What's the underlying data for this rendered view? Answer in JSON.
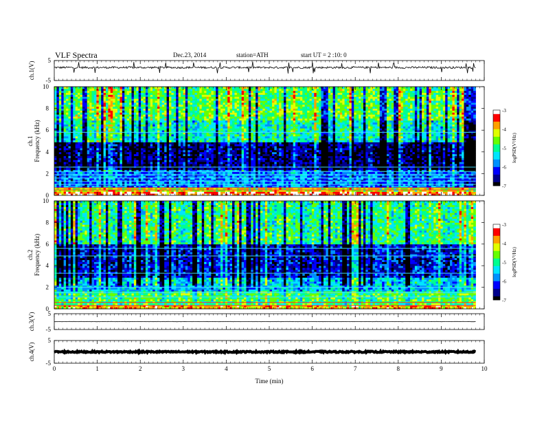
{
  "header": {
    "title": "VLF  Spectra",
    "date": "Dec.23, 2014",
    "station": "station=ATH",
    "start": "start  UT  =   2  :10: 0"
  },
  "chart_data": {
    "type": "heatmap",
    "x_axis": {
      "label": "Time  (min)",
      "range": [
        0,
        10
      ],
      "ticks": [
        "0",
        "1",
        "2",
        "3",
        "4",
        "5",
        "6",
        "7",
        "8",
        "9",
        "10"
      ],
      "data_end_min": 9.8
    },
    "panels": [
      {
        "id": "ch1-waveform",
        "type": "line",
        "ylabel": "ch.1(V)",
        "ylim": [
          -5,
          5
        ],
        "ytick_labels": [
          "5",
          "-5"
        ],
        "baseline_v": 1.5,
        "noise_amplitude_v": 1.0,
        "color": "#000000"
      },
      {
        "id": "ch1-spectrogram",
        "type": "heatmap",
        "ylabel_lines": [
          "ch.1",
          "Frequency  (kHz)"
        ],
        "ylim": [
          0,
          10
        ],
        "ytick_labels": [
          "10",
          "8",
          "6",
          "4",
          "2",
          "0"
        ],
        "colorbar": {
          "label": "logPSD(V²/Hz)",
          "range": [
            -7,
            -3
          ],
          "tick_labels": [
            "-3",
            "-4",
            "-5",
            "-6",
            "-7"
          ]
        },
        "mean_log_psd_by_band": [
          {
            "f_khz": [
              0.0,
              0.3
            ],
            "log_psd": -3.3
          },
          {
            "f_khz": [
              0.3,
              0.8
            ],
            "log_psd": -4.2
          },
          {
            "f_khz": [
              0.8,
              2.4
            ],
            "log_psd": -5.8
          },
          {
            "f_khz": [
              2.4,
              5.0
            ],
            "log_psd": -6.6
          },
          {
            "f_khz": [
              5.0,
              7.0
            ],
            "log_psd": -5.2
          },
          {
            "f_khz": [
              7.0,
              10.0
            ],
            "log_psd": -4.7
          }
        ],
        "horizontal_lines_khz": [
          0.5,
          0.7,
          1.0,
          1.3,
          1.6,
          1.9,
          2.2,
          2.6,
          5.8
        ]
      },
      {
        "id": "ch2-spectrogram",
        "type": "heatmap",
        "ylabel_lines": [
          "ch.2",
          "Frequency  (kHz)"
        ],
        "ylim": [
          0,
          10
        ],
        "ytick_labels": [
          "10",
          "8",
          "6",
          "4",
          "2",
          "0"
        ],
        "colorbar": {
          "label": "logPSD(V²/Hz)",
          "range": [
            -7,
            -3
          ],
          "tick_labels": [
            "-3",
            "-4",
            "-5",
            "-6",
            "-7"
          ]
        },
        "mean_log_psd_by_band": [
          {
            "f_khz": [
              0.0,
              0.4
            ],
            "log_psd": -3.8
          },
          {
            "f_khz": [
              0.4,
              1.6
            ],
            "log_psd": -4.8
          },
          {
            "f_khz": [
              1.6,
              3.0
            ],
            "log_psd": -5.5
          },
          {
            "f_khz": [
              3.0,
              6.0
            ],
            "log_psd": -6.3
          },
          {
            "f_khz": [
              6.0,
              10.0
            ],
            "log_psd": -5.0
          }
        ],
        "horizontal_lines_khz": [
          0.3,
          0.6,
          1.1,
          1.5,
          2.0,
          3.3,
          4.9,
          5.6
        ]
      },
      {
        "id": "ch3-waveform",
        "type": "line",
        "ylabel": "ch.3(V)",
        "ylim": [
          -5,
          5
        ],
        "ytick_labels": [
          "5",
          "-5"
        ],
        "baseline_v": 0.0,
        "noise_amplitude_v": 0.2,
        "color": "#000000"
      },
      {
        "id": "ch4-waveform",
        "type": "line",
        "ylabel": "ch.4(V)",
        "ylim": [
          -5,
          5
        ],
        "ytick_labels": [
          "5",
          "-5"
        ],
        "baseline_v": 0.0,
        "noise_amplitude_v": 0.6,
        "color": "#000000"
      }
    ],
    "colormap": [
      "#000000",
      "#00008b",
      "#0000ff",
      "#0090ff",
      "#00e5ff",
      "#00ff90",
      "#66ff00",
      "#e0ff00",
      "#ffa000",
      "#ff0000",
      "#ffffff"
    ]
  }
}
